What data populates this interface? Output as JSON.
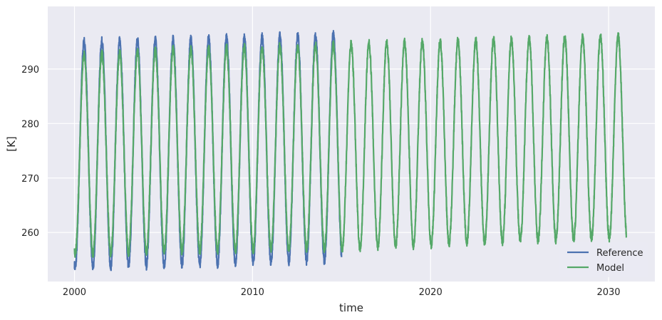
{
  "chart_data": {
    "type": "line",
    "title": "",
    "xlabel": "time",
    "ylabel": "[K]",
    "xlim": [
      1998.5,
      2032.6
    ],
    "ylim": [
      251,
      301.5
    ],
    "x_ticks": [
      "2000",
      "2010",
      "2020",
      "2030"
    ],
    "y_ticks": [
      "260",
      "270",
      "280",
      "290"
    ],
    "grid": true,
    "background": "#eaeaf2",
    "legend_position": "bottom-right",
    "seasonal_cycle": "annual, maximum mid-July, minimum mid-January",
    "series": [
      {
        "name": "Reference",
        "color": "#4c72b0",
        "x": [
          2000,
          2015
        ],
        "annual_max": [
          [
            2000,
            295.0
          ],
          [
            2001,
            295.0
          ],
          [
            2002,
            295.2
          ],
          [
            2003,
            295.2
          ],
          [
            2004,
            295.3
          ],
          [
            2005,
            295.4
          ],
          [
            2006,
            295.5
          ],
          [
            2007,
            295.6
          ],
          [
            2008,
            295.7
          ],
          [
            2009,
            295.8
          ],
          [
            2010,
            295.8
          ],
          [
            2011,
            296.0
          ],
          [
            2012,
            296.1
          ],
          [
            2013,
            296.2
          ],
          [
            2014,
            296.3
          ]
        ],
        "annual_min": [
          [
            2000,
            253.5
          ],
          [
            2001,
            253.6
          ],
          [
            2002,
            253.7
          ],
          [
            2003,
            253.8
          ],
          [
            2004,
            253.9
          ],
          [
            2005,
            254.0
          ],
          [
            2006,
            254.1
          ],
          [
            2007,
            254.1
          ],
          [
            2008,
            254.2
          ],
          [
            2009,
            254.3
          ],
          [
            2010,
            254.4
          ],
          [
            2011,
            254.5
          ],
          [
            2012,
            254.6
          ],
          [
            2013,
            254.7
          ],
          [
            2014,
            254.8
          ],
          [
            2015,
            255.0
          ]
        ]
      },
      {
        "name": "Model",
        "color": "#55a868",
        "x": [
          2000,
          2031
        ],
        "annual_max": [
          [
            2000,
            292.5
          ],
          [
            2005,
            293.5
          ],
          [
            2010,
            294.0
          ],
          [
            2015,
            294.5
          ],
          [
            2020,
            295.0
          ],
          [
            2025,
            295.5
          ],
          [
            2030,
            296.0
          ]
        ],
        "annual_min": [
          [
            2000,
            256.0
          ],
          [
            2005,
            256.5
          ],
          [
            2010,
            256.8
          ],
          [
            2015,
            257.0
          ],
          [
            2020,
            257.8
          ],
          [
            2025,
            258.5
          ],
          [
            2030,
            259.0
          ]
        ]
      }
    ]
  }
}
